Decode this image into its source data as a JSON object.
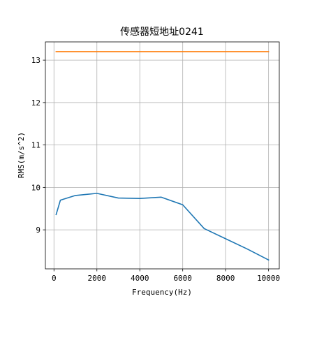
{
  "chart_data": {
    "type": "line",
    "title": "传感器短地址0241",
    "xlabel": "Frequency(Hz)",
    "ylabel": "RMS(m/s^2)",
    "xlim": [
      -400,
      10500
    ],
    "ylim": [
      8.08,
      13.43
    ],
    "xticks": [
      0,
      2000,
      4000,
      6000,
      8000,
      10000
    ],
    "yticks": [
      9,
      10,
      11,
      12,
      13
    ],
    "grid": true,
    "legend": "none",
    "series": [
      {
        "color": "#1f77b4",
        "x": [
          100,
          300,
          1000,
          2000,
          3000,
          4000,
          5000,
          6000,
          7000,
          8000,
          9000,
          10000
        ],
        "y": [
          9.36,
          9.7,
          9.81,
          9.86,
          9.75,
          9.74,
          9.77,
          9.59,
          9.03,
          8.79,
          8.55,
          8.29
        ]
      },
      {
        "color": "#ff7f0e",
        "x": [
          100,
          10000
        ],
        "y": [
          13.2,
          13.2
        ]
      }
    ]
  }
}
